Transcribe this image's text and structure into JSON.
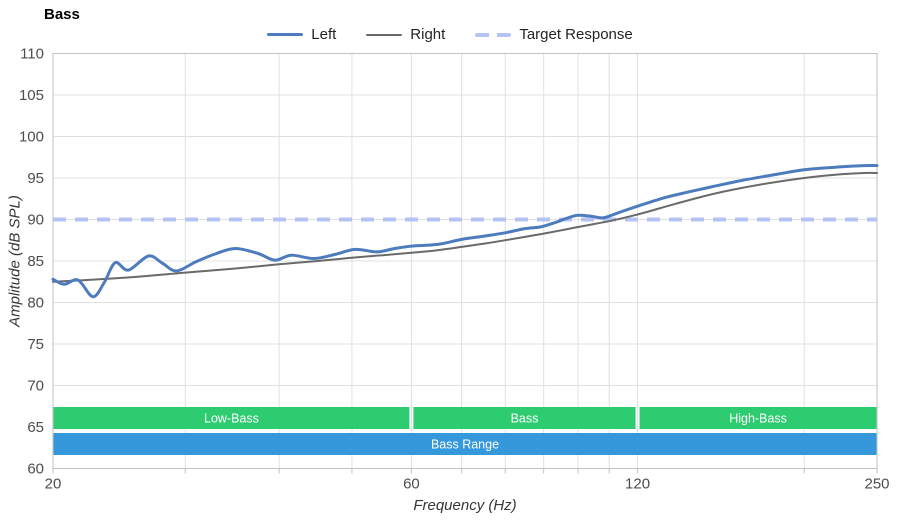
{
  "title": "Bass",
  "legend": [
    {
      "name": "Left",
      "color": "#4d7cbe",
      "style": "solid",
      "width": 3
    },
    {
      "name": "Right",
      "color": "#6a6a6a",
      "style": "solid",
      "width": 2
    },
    {
      "name": "Target Response",
      "color": "#b4c3f4",
      "style": "dashed",
      "width": 4
    }
  ],
  "chart_data": {
    "type": "line",
    "title": "Bass",
    "xlabel": "Frequency (Hz)",
    "ylabel": "Amplitude (dB SPL)",
    "x_scale": "log",
    "xlim": [
      20,
      250
    ],
    "ylim": [
      60,
      110
    ],
    "x_major_ticks": [
      20,
      60,
      120,
      250
    ],
    "x_minor_gridlines": [
      30,
      40,
      50,
      60,
      70,
      80,
      90,
      100,
      110,
      120,
      200
    ],
    "y_ticks": [
      60,
      65,
      70,
      75,
      80,
      85,
      90,
      95,
      100,
      105,
      110
    ],
    "grid": true,
    "legend_position": "top",
    "target_response": 90,
    "series": [
      {
        "name": "Left",
        "color": "#4d7cbe",
        "width": 3,
        "points": [
          [
            20,
            82.8
          ],
          [
            20.7,
            82.2
          ],
          [
            21.6,
            82.7
          ],
          [
            22.6,
            80.7
          ],
          [
            23.4,
            82.4
          ],
          [
            24.2,
            84.8
          ],
          [
            25.2,
            83.9
          ],
          [
            26.8,
            85.6
          ],
          [
            28,
            84.7
          ],
          [
            29.2,
            83.8
          ],
          [
            31,
            84.9
          ],
          [
            33,
            85.9
          ],
          [
            35,
            86.5
          ],
          [
            37.5,
            85.9
          ],
          [
            39.5,
            85.1
          ],
          [
            41.5,
            85.7
          ],
          [
            44.5,
            85.3
          ],
          [
            47.5,
            85.8
          ],
          [
            50.5,
            86.4
          ],
          [
            54,
            86.1
          ],
          [
            57,
            86.5
          ],
          [
            60,
            86.8
          ],
          [
            65,
            87.0
          ],
          [
            70,
            87.6
          ],
          [
            75,
            88.0
          ],
          [
            80,
            88.4
          ],
          [
            85,
            88.9
          ],
          [
            89,
            89.1
          ],
          [
            93,
            89.6
          ],
          [
            97,
            90.2
          ],
          [
            100,
            90.5
          ],
          [
            104,
            90.4
          ],
          [
            108,
            90.2
          ],
          [
            113,
            90.8
          ],
          [
            120,
            91.6
          ],
          [
            130,
            92.6
          ],
          [
            140,
            93.3
          ],
          [
            150,
            93.9
          ],
          [
            165,
            94.7
          ],
          [
            180,
            95.3
          ],
          [
            200,
            96.0
          ],
          [
            220,
            96.3
          ],
          [
            240,
            96.5
          ],
          [
            250,
            96.5
          ]
        ]
      },
      {
        "name": "Right",
        "color": "#6a6a6a",
        "width": 2,
        "points": [
          [
            20,
            82.5
          ],
          [
            25,
            83.0
          ],
          [
            30,
            83.6
          ],
          [
            35,
            84.1
          ],
          [
            40,
            84.6
          ],
          [
            45,
            85.0
          ],
          [
            50,
            85.4
          ],
          [
            55,
            85.7
          ],
          [
            60,
            86.0
          ],
          [
            65,
            86.3
          ],
          [
            70,
            86.7
          ],
          [
            75,
            87.1
          ],
          [
            80,
            87.5
          ],
          [
            85,
            87.9
          ],
          [
            90,
            88.3
          ],
          [
            95,
            88.7
          ],
          [
            100,
            89.1
          ],
          [
            110,
            89.8
          ],
          [
            120,
            90.6
          ],
          [
            135,
            91.9
          ],
          [
            150,
            93.0
          ],
          [
            165,
            93.8
          ],
          [
            180,
            94.4
          ],
          [
            200,
            95.0
          ],
          [
            220,
            95.4
          ],
          [
            240,
            95.6
          ],
          [
            250,
            95.6
          ]
        ]
      }
    ],
    "bands": {
      "segments": [
        {
          "label": "Low-Bass",
          "from": 20,
          "to": 60
        },
        {
          "label": "Bass",
          "from": 60,
          "to": 120
        },
        {
          "label": "High-Bass",
          "from": 120,
          "to": 250
        }
      ],
      "segment_color": "#2ecc71",
      "range": {
        "label": "Bass Range",
        "from": 20,
        "to": 250,
        "color": "#3498db"
      },
      "text_color": "#ffffff"
    },
    "style": {
      "grid_color": "#e0e0e0",
      "axis_border_color": "#c2c2c2",
      "tick_label_color": "#4d4d4d",
      "target_color": "#b4c3f4",
      "target_dash": "13 9"
    }
  }
}
